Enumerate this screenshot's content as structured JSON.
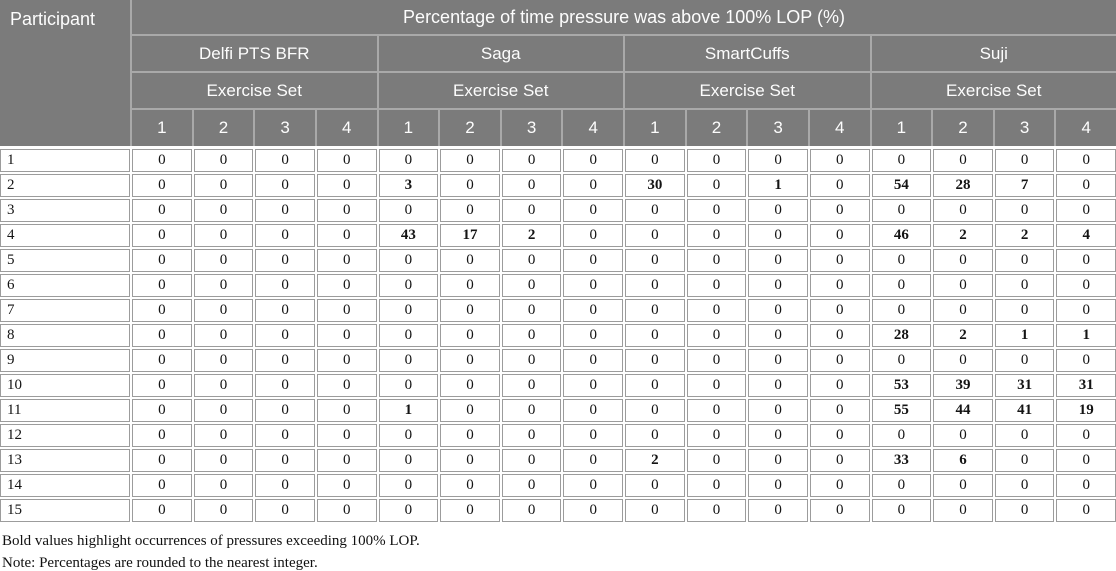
{
  "table": {
    "participant_header": "Participant",
    "title": "Percentage of time pressure was above 100% LOP (%)",
    "devices": [
      "Delfi PTS BFR",
      "Saga",
      "SmartCuffs",
      "Suji"
    ],
    "exercise_set_label": "Exercise Set",
    "set_numbers": [
      "1",
      "2",
      "3",
      "4"
    ],
    "rows": [
      {
        "participant": "1",
        "values": [
          0,
          0,
          0,
          0,
          0,
          0,
          0,
          0,
          0,
          0,
          0,
          0,
          0,
          0,
          0,
          0
        ]
      },
      {
        "participant": "2",
        "values": [
          0,
          0,
          0,
          0,
          3,
          0,
          0,
          0,
          30,
          0,
          1,
          0,
          54,
          28,
          7,
          0
        ]
      },
      {
        "participant": "3",
        "values": [
          0,
          0,
          0,
          0,
          0,
          0,
          0,
          0,
          0,
          0,
          0,
          0,
          0,
          0,
          0,
          0
        ]
      },
      {
        "participant": "4",
        "values": [
          0,
          0,
          0,
          0,
          43,
          17,
          2,
          0,
          0,
          0,
          0,
          0,
          46,
          2,
          2,
          4
        ]
      },
      {
        "participant": "5",
        "values": [
          0,
          0,
          0,
          0,
          0,
          0,
          0,
          0,
          0,
          0,
          0,
          0,
          0,
          0,
          0,
          0
        ]
      },
      {
        "participant": "6",
        "values": [
          0,
          0,
          0,
          0,
          0,
          0,
          0,
          0,
          0,
          0,
          0,
          0,
          0,
          0,
          0,
          0
        ]
      },
      {
        "participant": "7",
        "values": [
          0,
          0,
          0,
          0,
          0,
          0,
          0,
          0,
          0,
          0,
          0,
          0,
          0,
          0,
          0,
          0
        ]
      },
      {
        "participant": "8",
        "values": [
          0,
          0,
          0,
          0,
          0,
          0,
          0,
          0,
          0,
          0,
          0,
          0,
          28,
          2,
          1,
          1
        ]
      },
      {
        "participant": "9",
        "values": [
          0,
          0,
          0,
          0,
          0,
          0,
          0,
          0,
          0,
          0,
          0,
          0,
          0,
          0,
          0,
          0
        ]
      },
      {
        "participant": "10",
        "values": [
          0,
          0,
          0,
          0,
          0,
          0,
          0,
          0,
          0,
          0,
          0,
          0,
          53,
          39,
          31,
          31
        ]
      },
      {
        "participant": "11",
        "values": [
          0,
          0,
          0,
          0,
          1,
          0,
          0,
          0,
          0,
          0,
          0,
          0,
          55,
          44,
          41,
          19
        ]
      },
      {
        "participant": "12",
        "values": [
          0,
          0,
          0,
          0,
          0,
          0,
          0,
          0,
          0,
          0,
          0,
          0,
          0,
          0,
          0,
          0
        ]
      },
      {
        "participant": "13",
        "values": [
          0,
          0,
          0,
          0,
          0,
          0,
          0,
          0,
          2,
          0,
          0,
          0,
          33,
          6,
          0,
          0
        ]
      },
      {
        "participant": "14",
        "values": [
          0,
          0,
          0,
          0,
          0,
          0,
          0,
          0,
          0,
          0,
          0,
          0,
          0,
          0,
          0,
          0
        ]
      },
      {
        "participant": "15",
        "values": [
          0,
          0,
          0,
          0,
          0,
          0,
          0,
          0,
          0,
          0,
          0,
          0,
          0,
          0,
          0,
          0
        ]
      }
    ]
  },
  "footnotes": [
    "Bold values highlight occurrences of pressures exceeding 100% LOP.",
    "Note: Percentages are rounded to the nearest integer."
  ],
  "colors": {
    "header_bg": "#7b7b7b",
    "header_line": "#a9a9a9",
    "header_text": "#fdfdfd",
    "cell_border": "#9c9c9c",
    "body_text": "#141414"
  }
}
